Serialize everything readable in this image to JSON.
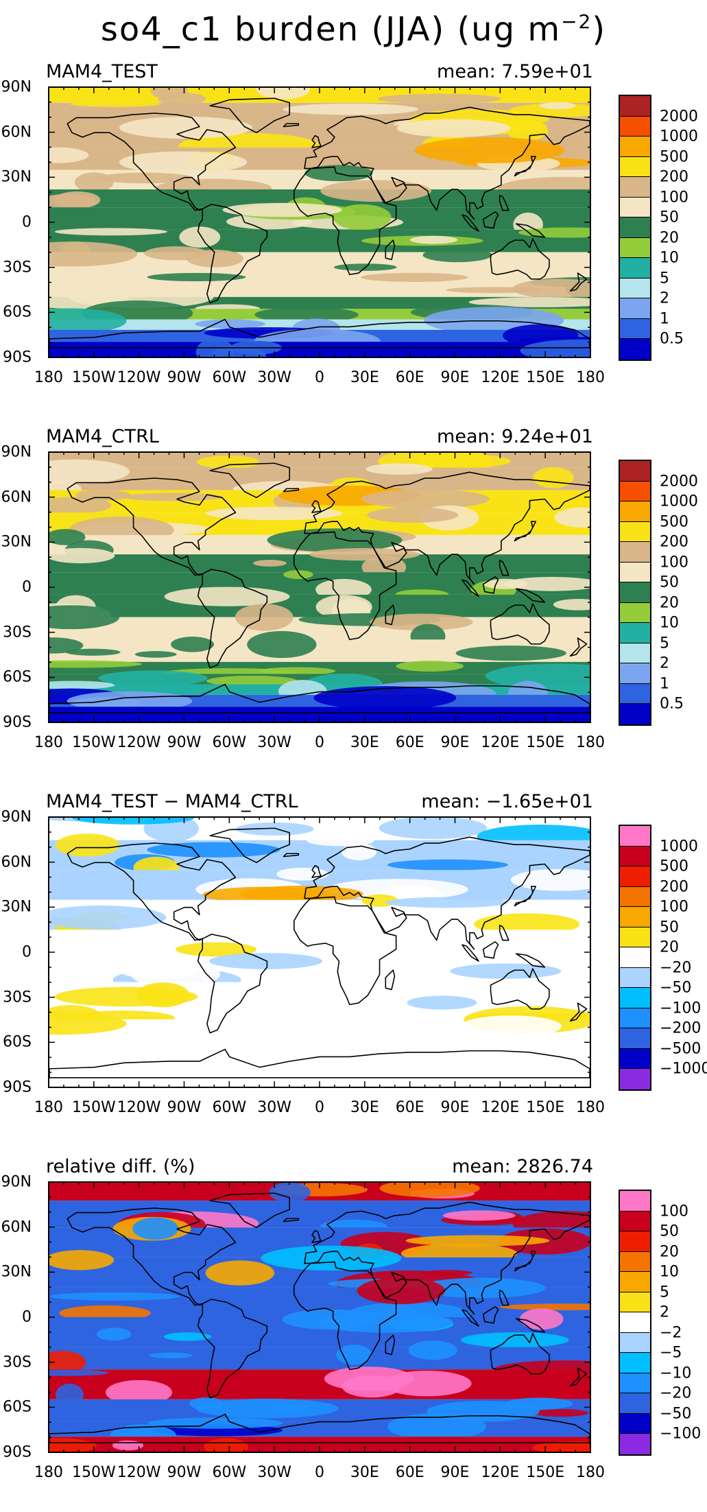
{
  "title": {
    "main": "so4_c1 burden (JJA) (ug m",
    "exp": "−2",
    "close": ")"
  },
  "lat_labels": [
    "90N",
    "60N",
    "30N",
    "0",
    "30S",
    "60S",
    "90S"
  ],
  "lon_labels": [
    "180",
    "150W",
    "120W",
    "90W",
    "60W",
    "30W",
    "0",
    "30E",
    "60E",
    "90E",
    "120E",
    "150E",
    "180"
  ],
  "palettes": {
    "burden": [
      "#0000c8",
      "#2e64e0",
      "#7ba5ee",
      "#b4e4ec",
      "#22b0a2",
      "#94cc3a",
      "#2f8050",
      "#f4e6c4",
      "#d9b689",
      "#f9e316",
      "#f8a800",
      "#f74f00",
      "#ad2222"
    ],
    "diff": [
      "#8a2be2",
      "#0000c8",
      "#2e64e0",
      "#1e90ff",
      "#00bfff",
      "#aad4ff",
      "#ffffff",
      "#f9e316",
      "#f8a800",
      "#f57300",
      "#f01e00",
      "#c8001e",
      "#ff78c8"
    ]
  },
  "panels": [
    {
      "left": "MAM4_TEST",
      "right": "mean: 7.59e+01",
      "palette": "burden",
      "ticks": [
        "0.5",
        "1",
        "2",
        "5",
        "10",
        "20",
        "50",
        "100",
        "200",
        "500",
        "1000",
        "2000"
      ]
    },
    {
      "left": "MAM4_CTRL",
      "right": "mean: 9.24e+01",
      "palette": "burden",
      "ticks": [
        "0.5",
        "1",
        "2",
        "5",
        "10",
        "20",
        "50",
        "100",
        "200",
        "500",
        "1000",
        "2000"
      ]
    },
    {
      "left": "MAM4_TEST − MAM4_CTRL",
      "right": "mean: −1.65e+01",
      "palette": "diff",
      "ticks": [
        "−1000",
        "−500",
        "−200",
        "−100",
        "−50",
        "−20",
        "20",
        "50",
        "100",
        "200",
        "500",
        "1000"
      ]
    },
    {
      "left": "relative diff. (%)",
      "right": "mean: 2826.74",
      "palette": "diff",
      "ticks": [
        "−100",
        "−50",
        "−20",
        "−10",
        "−5",
        "−2",
        "2",
        "5",
        "10",
        "20",
        "50",
        "100"
      ]
    }
  ]
}
